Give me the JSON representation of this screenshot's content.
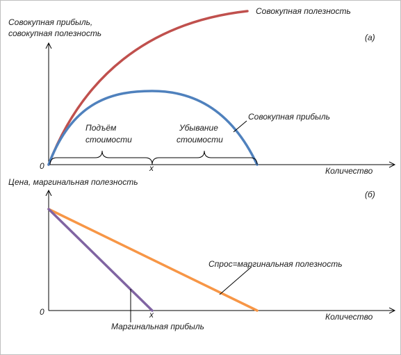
{
  "panel_a": {
    "y_axis_label_line1": "Совокупная прибыль,",
    "y_axis_label_line2": "совокупная полезность",
    "x_axis_label": "Количество",
    "origin_label": "0",
    "x_point_label": "x",
    "panel_tag": "(а)",
    "total_utility_label": "Совокупная полезность",
    "total_profit_label": "Совокупная прибыль",
    "rising_value_line1": "Подъём",
    "rising_value_line2": "стоимости",
    "falling_value_line1": "Убывание",
    "falling_value_line2": "стоимости"
  },
  "panel_b": {
    "y_axis_label": "Цена, маргинальная полезность",
    "x_axis_label": "Количество",
    "origin_label": "0",
    "x_point_label": "x",
    "panel_tag": "(б)",
    "demand_label": "Спрос=маргинальная полезность",
    "marginal_profit_label": "Маргинальная прибыль"
  },
  "colors": {
    "total_utility": "#c0504d",
    "total_profit": "#4f81bd",
    "demand": "#f79646",
    "marginal_profit": "#8064a2",
    "axes": "#000000"
  }
}
